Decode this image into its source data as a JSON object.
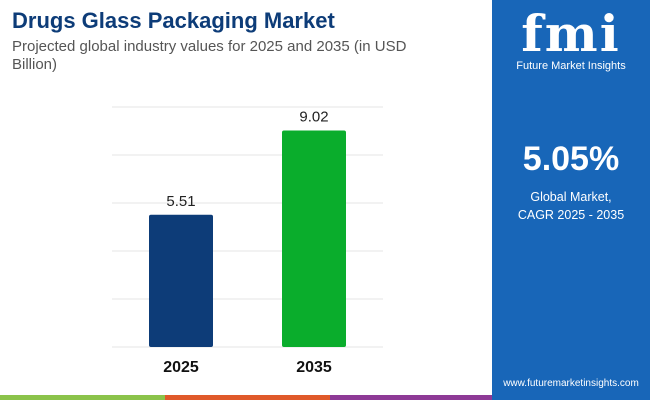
{
  "header": {
    "title": "Drugs Glass Packaging Market",
    "subtitle": "Projected global industry values for 2025 and 2035 (in USD Billion)"
  },
  "sidebar": {
    "logo_text": "fmi",
    "brand": "Future Market Insights",
    "cagr_value": "5.05%",
    "cagr_label_1": "Global Market,",
    "cagr_label_2": "CAGR 2025 - 2035",
    "url": "www.futuremarketinsights.com"
  },
  "colors": {
    "panel": "#1866b8",
    "bar_2025": "#0d3c78",
    "bar_2035": "#0aad2c",
    "title": "#0d3c78"
  },
  "chart_data": {
    "type": "bar",
    "categories": [
      "2025",
      "2035"
    ],
    "values": [
      5.51,
      9.02
    ],
    "data_labels": [
      "5.51",
      "9.02"
    ],
    "ylim": [
      0,
      10
    ],
    "grid": true,
    "xlabel": "",
    "ylabel": ""
  }
}
